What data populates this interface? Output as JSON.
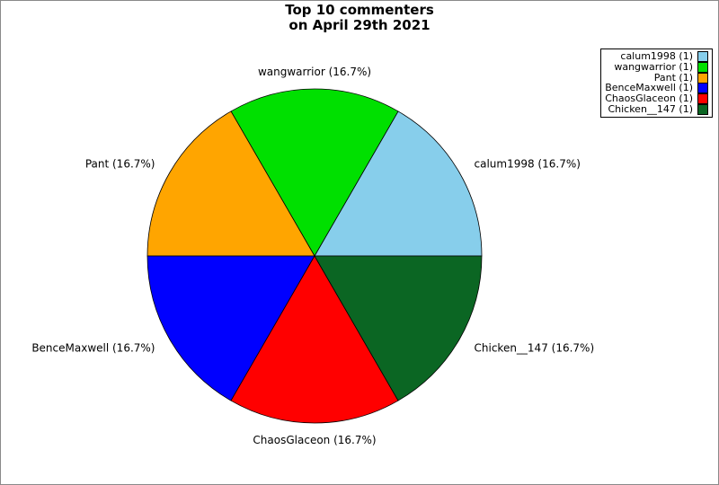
{
  "title": {
    "line1": "Top 10 commenters",
    "line2": "on April 29th 2021"
  },
  "chart_data": {
    "type": "pie",
    "title": "Top 10 commenters on April 29th 2021",
    "start_angle_deg": 0,
    "direction": "counterclockwise",
    "legend_position": "upper right",
    "slices": [
      {
        "name": "calum1998",
        "value": 1,
        "pct": 16.7,
        "label": "calum1998 (16.7%)",
        "legend_label": "calum1998 (1)",
        "color": "#87CEEB"
      },
      {
        "name": "wangwarrior",
        "value": 1,
        "pct": 16.7,
        "label": "wangwarrior (16.7%)",
        "legend_label": "wangwarrior (1)",
        "color": "#00E000"
      },
      {
        "name": "Pant",
        "value": 1,
        "pct": 16.7,
        "label": "Pant (16.7%)",
        "legend_label": "Pant (1)",
        "color": "#FFA500"
      },
      {
        "name": "BenceMaxwell",
        "value": 1,
        "pct": 16.7,
        "label": "BenceMaxwell (16.7%)",
        "legend_label": "BenceMaxwell (1)",
        "color": "#0000FF"
      },
      {
        "name": "ChaosGlaceon",
        "value": 1,
        "pct": 16.7,
        "label": "ChaosGlaceon (16.7%)",
        "legend_label": "ChaosGlaceon (1)",
        "color": "#FF0000"
      },
      {
        "name": "Chicken__147",
        "value": 1,
        "pct": 16.7,
        "label": "Chicken__147 (16.7%)",
        "legend_label": "Chicken__147 (1)",
        "color": "#0B6623"
      }
    ]
  }
}
